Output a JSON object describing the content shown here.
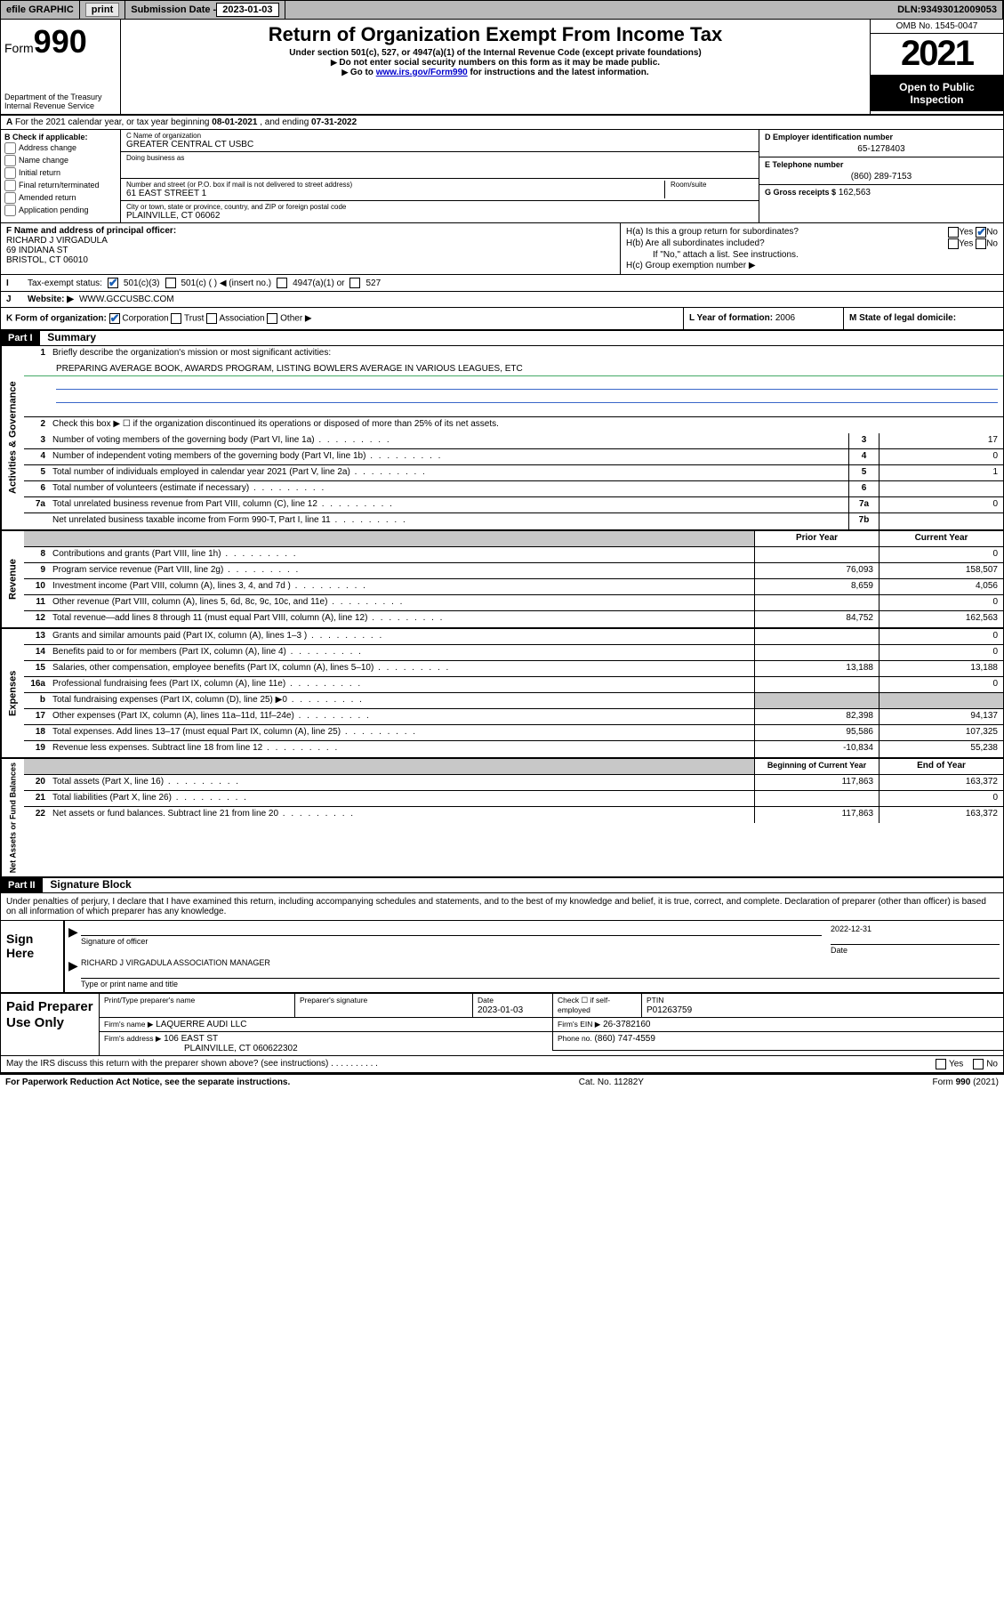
{
  "topstrip": {
    "efile": "efile GRAPHIC",
    "print": "print",
    "subdate_label": "Submission Date - ",
    "subdate": "2023-01-03",
    "dln_label": "DLN: ",
    "dln": "93493012009053"
  },
  "hdr": {
    "form": "Form",
    "num": "990",
    "title": "Return of Organization Exempt From Income Tax",
    "sub1": "Under section 501(c), 527, or 4947(a)(1) of the Internal Revenue Code (except private foundations)",
    "sub2": "Do not enter social security numbers on this form as it may be made public.",
    "sub3_pre": "Go to ",
    "sub3_link": "www.irs.gov/Form990",
    "sub3_post": " for instructions and the latest information.",
    "dept": "Department of the Treasury\nInternal Revenue Service",
    "omb": "OMB No. 1545-0047",
    "year": "2021",
    "open": "Open to Public Inspection"
  },
  "rowA": {
    "a": "A",
    "txt1": "For the 2021 calendar year, or tax year beginning ",
    "beg": "08-01-2021",
    "txt2": " , and ending ",
    "end": "07-31-2022"
  },
  "B": {
    "hdr": "B Check if applicable:",
    "opts": [
      "Address change",
      "Name change",
      "Initial return",
      "Final return/terminated",
      "Amended return",
      "Application pending"
    ]
  },
  "C": {
    "name_lab": "C Name of organization",
    "name": "GREATER CENTRAL CT USBC",
    "dba_lab": "Doing business as",
    "dba": "",
    "street_lab": "Number and street (or P.O. box if mail is not delivered to street address)",
    "room_lab": "Room/suite",
    "street": "61 EAST STREET 1",
    "city_lab": "City or town, state or province, country, and ZIP or foreign postal code",
    "city": "PLAINVILLE, CT  06062"
  },
  "D": {
    "lab": "D Employer identification number",
    "val": "65-1278403"
  },
  "E": {
    "lab": "E Telephone number",
    "val": "(860) 289-7153"
  },
  "G": {
    "lab": "G Gross receipts $",
    "val": "162,563"
  },
  "F": {
    "lab": "F Name and address of principal officer:",
    "name": "RICHARD J VIRGADULA",
    "addr1": "69 INDIANA ST",
    "addr2": "BRISTOL, CT  06010"
  },
  "H": {
    "a_lab": "H(a)  Is this a group return for subordinates?",
    "a_yes": "Yes",
    "a_no": "No",
    "b_lab": "H(b)  Are all subordinates included?",
    "b_note": "If \"No,\" attach a list. See instructions.",
    "c_lab": "H(c)  Group exemption number ▶"
  },
  "I": {
    "lab": "Tax-exempt status:",
    "o1": "501(c)(3)",
    "o2": "501(c) (   ) ◀ (insert no.)",
    "o3": "4947(a)(1) or",
    "o4": "527"
  },
  "J": {
    "lab": "Website: ▶",
    "val": "WWW.GCCUSBC.COM"
  },
  "K": {
    "lab": "K Form of organization:",
    "o1": "Corporation",
    "o2": "Trust",
    "o3": "Association",
    "o4": "Other ▶"
  },
  "L": {
    "lab": "L Year of formation:",
    "val": "2006"
  },
  "M": {
    "lab": "M State of legal domicile:",
    "val": ""
  },
  "partI": {
    "hdr": "Part I",
    "title": "Summary"
  },
  "mission": {
    "line1_lab": "1",
    "line1_txt": "Briefly describe the organization's mission or most significant activities:",
    "line1_val": "PREPARING AVERAGE BOOK, AWARDS PROGRAM, LISTING BOWLERS AVERAGE IN VARIOUS LEAGUES, ETC"
  },
  "gov": {
    "side": "Activities & Governance",
    "l2": "Check this box ▶ ☐  if the organization discontinued its operations or disposed of more than 25% of its net assets.",
    "l3": "Number of voting members of the governing body (Part VI, line 1a)",
    "l4": "Number of independent voting members of the governing body (Part VI, line 1b)",
    "l5": "Total number of individuals employed in calendar year 2021 (Part V, line 2a)",
    "l6": "Total number of volunteers (estimate if necessary)",
    "l7a": "Total unrelated business revenue from Part VIII, column (C), line 12",
    "l7b": "Net unrelated business taxable income from Form 990-T, Part I, line 11",
    "v3": "17",
    "v4": "0",
    "v5": "1",
    "v6": "",
    "v7a": "0",
    "v7b": ""
  },
  "colhdr": {
    "prior": "Prior Year",
    "current": "Current Year"
  },
  "rev": {
    "side": "Revenue",
    "rows": [
      {
        "n": "8",
        "t": "Contributions and grants (Part VIII, line 1h)",
        "p": "",
        "c": "0"
      },
      {
        "n": "9",
        "t": "Program service revenue (Part VIII, line 2g)",
        "p": "76,093",
        "c": "158,507"
      },
      {
        "n": "10",
        "t": "Investment income (Part VIII, column (A), lines 3, 4, and 7d )",
        "p": "8,659",
        "c": "4,056"
      },
      {
        "n": "11",
        "t": "Other revenue (Part VIII, column (A), lines 5, 6d, 8c, 9c, 10c, and 11e)",
        "p": "",
        "c": "0"
      },
      {
        "n": "12",
        "t": "Total revenue—add lines 8 through 11 (must equal Part VIII, column (A), line 12)",
        "p": "84,752",
        "c": "162,563"
      }
    ]
  },
  "exp": {
    "side": "Expenses",
    "rows": [
      {
        "n": "13",
        "t": "Grants and similar amounts paid (Part IX, column (A), lines 1–3 )",
        "p": "",
        "c": "0"
      },
      {
        "n": "14",
        "t": "Benefits paid to or for members (Part IX, column (A), line 4)",
        "p": "",
        "c": "0"
      },
      {
        "n": "15",
        "t": "Salaries, other compensation, employee benefits (Part IX, column (A), lines 5–10)",
        "p": "13,188",
        "c": "13,188"
      },
      {
        "n": "16a",
        "t": "Professional fundraising fees (Part IX, column (A), line 11e)",
        "p": "",
        "c": "0"
      },
      {
        "n": "b",
        "t": "Total fundraising expenses (Part IX, column (D), line 25) ▶0",
        "p": "shade",
        "c": "shade"
      },
      {
        "n": "17",
        "t": "Other expenses (Part IX, column (A), lines 11a–11d, 11f–24e)",
        "p": "82,398",
        "c": "94,137"
      },
      {
        "n": "18",
        "t": "Total expenses. Add lines 13–17 (must equal Part IX, column (A), line 25)",
        "p": "95,586",
        "c": "107,325"
      },
      {
        "n": "19",
        "t": "Revenue less expenses. Subtract line 18 from line 12",
        "p": "-10,834",
        "c": "55,238"
      }
    ]
  },
  "colhdr2": {
    "prior": "Beginning of Current Year",
    "current": "End of Year"
  },
  "net": {
    "side": "Net Assets or Fund Balances",
    "rows": [
      {
        "n": "20",
        "t": "Total assets (Part X, line 16)",
        "p": "117,863",
        "c": "163,372"
      },
      {
        "n": "21",
        "t": "Total liabilities (Part X, line 26)",
        "p": "",
        "c": "0"
      },
      {
        "n": "22",
        "t": "Net assets or fund balances. Subtract line 21 from line 20",
        "p": "117,863",
        "c": "163,372"
      }
    ]
  },
  "partII": {
    "hdr": "Part II",
    "title": "Signature Block"
  },
  "sigp": "Under penalties of perjury, I declare that I have examined this return, including accompanying schedules and statements, and to the best of my knowledge and belief, it is true, correct, and complete. Declaration of preparer (other than officer) is based on all information of which preparer has any knowledge.",
  "sign": {
    "lab": "Sign Here",
    "sig_of": "Signature of officer",
    "date": "2022-12-31",
    "date_lab": "Date",
    "name": "RICHARD J VIRGADULA  ASSOCIATION MANAGER",
    "name_lab": "Type or print name and title"
  },
  "paid": {
    "lab": "Paid Preparer Use Only",
    "h1": "Print/Type preparer's name",
    "h2": "Preparer's signature",
    "h3": "Date",
    "date": "2023-01-03",
    "h4": "Check ☐ if self-employed",
    "h5": "PTIN",
    "ptin": "P01263759",
    "firm_lab": "Firm's name      ▶",
    "firm": "LAQUERRE AUDI LLC",
    "ein_lab": "Firm's EIN ▶",
    "ein": "26-3782160",
    "addr_lab": "Firm's address ▶",
    "addr1": "106 EAST ST",
    "addr2": "PLAINVILLE, CT  060622302",
    "phone_lab": "Phone no.",
    "phone": "(860) 747-4559"
  },
  "may": {
    "txt": "May the IRS discuss this return with the preparer shown above? (see instructions)",
    "yes": "Yes",
    "no": "No"
  },
  "foot": {
    "l": "For Paperwork Reduction Act Notice, see the separate instructions.",
    "m": "Cat. No. 11282Y",
    "r": "Form 990 (2021)"
  }
}
